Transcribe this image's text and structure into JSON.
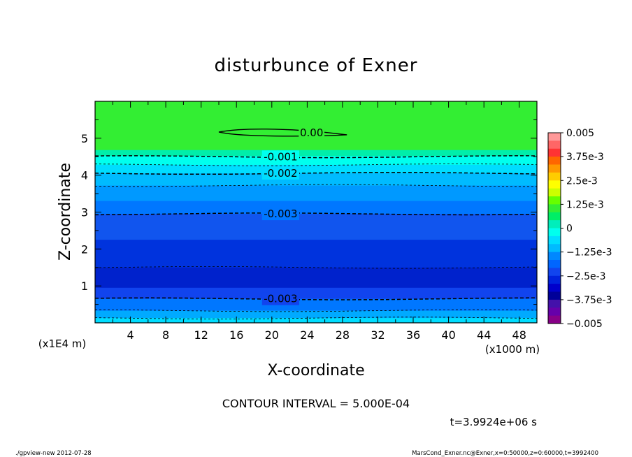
{
  "chart_data": {
    "type": "contour",
    "title": "disturbunce of Exner",
    "xlabel": "X-coordinate",
    "ylabel": "Z-coordinate",
    "x_unit": "(x1000 m)",
    "y_unit": "(x1E4 m)",
    "xlim": [
      0,
      50
    ],
    "ylim": [
      0,
      6
    ],
    "x_ticks": [
      "4",
      "8",
      "12",
      "16",
      "20",
      "24",
      "28",
      "32",
      "36",
      "40",
      "44",
      "48"
    ],
    "y_ticks": [
      "1",
      "2",
      "3",
      "4",
      "5"
    ],
    "grid": false,
    "colorbar": {
      "labels": [
        "0.005",
        "3.75e-3",
        "2.5e-3",
        "1.25e-3",
        "0",
        "−1.25e-3",
        "−2.5e-3",
        "−3.75e-3",
        "−0.005"
      ],
      "vmin": -0.005,
      "vmax": 0.005,
      "colors": [
        "#ff9999",
        "#ff6666",
        "#ff3333",
        "#ff6600",
        "#ff9900",
        "#ffcc00",
        "#ffff00",
        "#ccff00",
        "#66ff00",
        "#33ee33",
        "#00ee66",
        "#00eebb",
        "#00ffee",
        "#00ddff",
        "#00bbff",
        "#0088ff",
        "#0066ff",
        "#1144ee",
        "#0022dd",
        "#0000cc",
        "#000099",
        "#4411aa",
        "#6600aa",
        "#880088"
      ]
    },
    "bands": [
      {
        "z_top": 6.0,
        "z_bottom": 4.68,
        "color": "#33ee33"
      },
      {
        "z_top": 4.68,
        "z_bottom": 4.52,
        "color": "#00eeaa"
      },
      {
        "z_top": 4.52,
        "z_bottom": 4.28,
        "color": "#00ffee"
      },
      {
        "z_top": 4.28,
        "z_bottom": 4.05,
        "color": "#00ddff"
      },
      {
        "z_top": 4.05,
        "z_bottom": 3.72,
        "color": "#00bbff"
      },
      {
        "z_top": 3.72,
        "z_bottom": 3.3,
        "color": "#0099ff"
      },
      {
        "z_top": 3.3,
        "z_bottom": 2.95,
        "color": "#0077ff"
      },
      {
        "z_top": 2.95,
        "z_bottom": 2.25,
        "color": "#1155ee"
      },
      {
        "z_top": 2.25,
        "z_bottom": 1.5,
        "color": "#0033dd"
      },
      {
        "z_top": 1.5,
        "z_bottom": 0.95,
        "color": "#0022cc"
      },
      {
        "z_top": 0.95,
        "z_bottom": 0.65,
        "color": "#1144ee"
      },
      {
        "z_top": 0.65,
        "z_bottom": 0.33,
        "color": "#0077ff"
      },
      {
        "z_top": 0.33,
        "z_bottom": 0.13,
        "color": "#00aaff"
      },
      {
        "z_top": 0.13,
        "z_bottom": 0.0,
        "color": "#00ddff"
      }
    ],
    "contours": [
      {
        "level": "0.00",
        "z": 5.15,
        "type": "closed",
        "x_range": [
          14,
          28.5
        ],
        "label": "0.00"
      },
      {
        "level": "-0.001",
        "z": 4.5,
        "style": "dashed",
        "weight": "thick",
        "label": "-0.001"
      },
      {
        "level": "-0.0015",
        "z": 4.28,
        "style": "dashed",
        "weight": "thin"
      },
      {
        "level": "-0.002",
        "z": 4.05,
        "style": "dashed",
        "weight": "thick",
        "label": "-0.002"
      },
      {
        "level": "-0.0025",
        "z": 3.72,
        "style": "dashed",
        "weight": "thin"
      },
      {
        "level": "-0.003",
        "z": 2.95,
        "style": "dashed",
        "weight": "thick",
        "label": "-0.003"
      },
      {
        "level": "-0.0035",
        "z": 1.5,
        "style": "dashed",
        "weight": "thin"
      },
      {
        "level": "-0.003",
        "z": 0.65,
        "style": "dashed",
        "weight": "thick",
        "label": "-0.003"
      },
      {
        "level": "-0.0025",
        "z": 0.33,
        "style": "dashed",
        "weight": "thin"
      },
      {
        "level": "-0.002",
        "z": 0.13,
        "style": "dashed",
        "weight": "thin"
      }
    ],
    "annotations": {
      "contour_interval": "CONTOUR INTERVAL = 5.000E-04",
      "time": "t=3.9924e+06 s"
    }
  },
  "footer": {
    "left": "./gpview-new   2012-07-28",
    "right": "MarsCond_Exner.nc@Exner,x=0:50000,z=0:60000,t=3992400"
  }
}
